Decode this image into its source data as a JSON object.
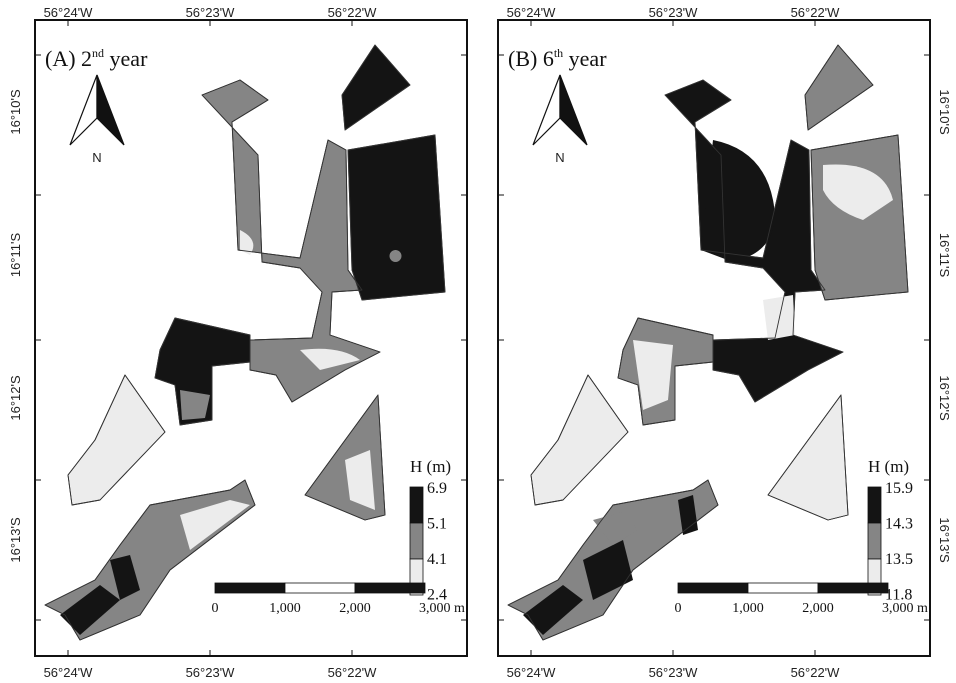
{
  "axes": {
    "lon": [
      "56°24'W",
      "56°23'W",
      "56°22'W"
    ],
    "lat": [
      "16°10'S",
      "16°11'S",
      "16°12'S",
      "16°13'S"
    ]
  },
  "north": "N",
  "scale_bar": [
    "0",
    "1,000",
    "2,000",
    "3,000 m"
  ],
  "panels": [
    {
      "label": "(A) 2",
      "superscript": "nd",
      "title_rest": " year",
      "legend_title": "H (m)",
      "legend_values": [
        6.9,
        5.1,
        4.1,
        2.4
      ]
    },
    {
      "label": "(B) 6",
      "superscript": "th",
      "title_rest": " year",
      "legend_title": "H (m)",
      "legend_values": [
        15.9,
        14.3,
        13.5,
        11.8
      ]
    }
  ]
}
